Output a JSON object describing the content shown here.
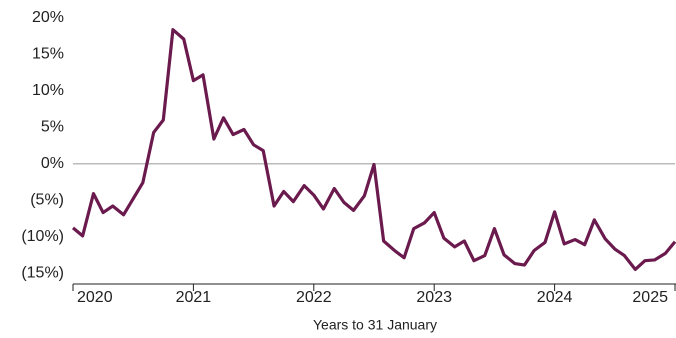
{
  "chart_data": {
    "type": "line",
    "x_label": "Years to 31 January",
    "x": [
      2020.0,
      2020.08,
      2020.17,
      2020.25,
      2020.33,
      2020.42,
      2020.5,
      2020.58,
      2020.67,
      2020.75,
      2020.83,
      2020.92,
      2021.0,
      2021.08,
      2021.17,
      2021.25,
      2021.33,
      2021.42,
      2021.5,
      2021.58,
      2021.67,
      2021.75,
      2021.83,
      2021.92,
      2022.0,
      2022.08,
      2022.17,
      2022.25,
      2022.33,
      2022.42,
      2022.5,
      2022.58,
      2022.67,
      2022.75,
      2022.83,
      2022.92,
      2023.0,
      2023.08,
      2023.17,
      2023.25,
      2023.33,
      2023.42,
      2023.5,
      2023.58,
      2023.67,
      2023.75,
      2023.83,
      2023.92,
      2024.0,
      2024.08,
      2024.17,
      2024.25,
      2024.33,
      2024.42,
      2024.5,
      2024.58,
      2024.67,
      2024.75,
      2024.83,
      2024.92,
      2025.0
    ],
    "series": [
      {
        "color": "#6b1a4d",
        "values": [
          -8.8,
          -9.9,
          -4.1,
          -6.7,
          -5.8,
          -7.0,
          -4.8,
          -2.6,
          4.3,
          6.0,
          18.4,
          17.1,
          11.4,
          12.2,
          3.4,
          6.3,
          4.0,
          4.7,
          2.6,
          1.8,
          -5.8,
          -3.8,
          -5.2,
          -3.0,
          -4.3,
          -6.2,
          -3.4,
          -5.3,
          -6.4,
          -4.4,
          -0.1,
          -10.6,
          -11.9,
          -12.9,
          -8.9,
          -8.1,
          -6.7,
          -10.2,
          -11.4,
          -10.6,
          -13.3,
          -12.6,
          -8.9,
          -12.5,
          -13.7,
          -13.9,
          -11.9,
          -10.8,
          -6.6,
          -11.0,
          -10.4,
          -11.1,
          -7.7,
          -10.3,
          -11.7,
          -12.6,
          -14.5,
          -13.3,
          -13.2,
          -12.3,
          -10.7
        ]
      }
    ],
    "xlim": [
      2020,
      2025
    ],
    "xticks": [
      2020,
      2021,
      2022,
      2023,
      2024,
      2025
    ],
    "ylim": [
      -16.5,
      20
    ],
    "yticks": [
      {
        "value": 20,
        "label": "20%"
      },
      {
        "value": 15,
        "label": "15%"
      },
      {
        "value": 10,
        "label": "10%"
      },
      {
        "value": 5,
        "label": "5%"
      },
      {
        "value": 0,
        "label": "0%"
      },
      {
        "value": -5,
        "label": "(5%)"
      },
      {
        "value": -10,
        "label": "(10%)"
      },
      {
        "value": -15,
        "label": "(15%)"
      }
    ],
    "zero_line": true
  }
}
